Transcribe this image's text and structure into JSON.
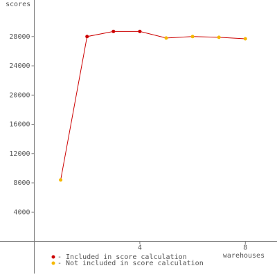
{
  "chart_data": {
    "type": "line",
    "y_label": "scores",
    "x_label": "warehouses",
    "x": [
      1,
      2,
      3,
      4,
      5,
      6,
      7,
      8
    ],
    "values": [
      8400,
      28000,
      28700,
      28700,
      27800,
      28000,
      27900,
      27700
    ],
    "line_color": "#cc0000",
    "point_colors": [
      "#f5b800",
      "#cc0000",
      "#cc0000",
      "#cc0000",
      "#f5b800",
      "#f5b800",
      "#f5b800",
      "#f5b800"
    ],
    "legend": [
      {
        "name": "- Included in score calculation",
        "color": "#cc0000"
      },
      {
        "name": "- Not included in score calculation",
        "color": "#f5b800"
      }
    ],
    "xlim": [
      -1.3,
      9.2
    ],
    "ylim": [
      -4400,
      33000
    ],
    "xticks": [
      4,
      8
    ],
    "yticks": [
      4000,
      8000,
      12000,
      16000,
      20000,
      24000,
      28000
    ]
  }
}
